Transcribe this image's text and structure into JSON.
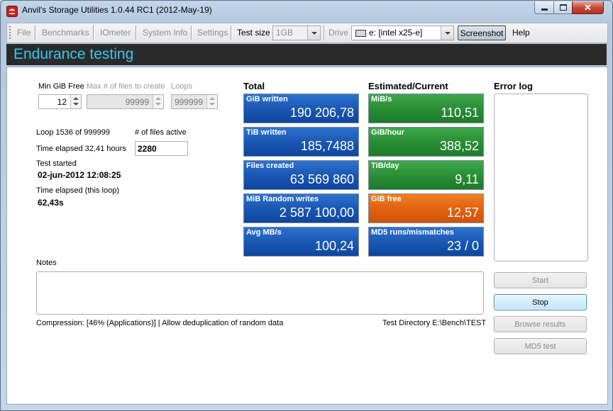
{
  "window": {
    "title": "Anvil's Storage Utilities 1.0.44 RC1 (2012-May-19)"
  },
  "menu": {
    "file": "File",
    "benchmarks": "Benchmarks",
    "iometer": "IOmeter",
    "system_info": "System Info",
    "settings": "Settings",
    "test_size_label": "Test size",
    "test_size_value": "1GB",
    "drive_label": "Drive",
    "drive_value": "e: [intel x25-e]",
    "screenshot": "Screenshot",
    "help": "Help"
  },
  "header": {
    "title": "Endurance testing"
  },
  "params": {
    "min_free_label": "Min GiB Free",
    "min_free_value": "12",
    "max_files_label": "Max # of files to create",
    "max_files_value": "99999",
    "loops_label": "Loops",
    "loops_value": "999999"
  },
  "status": {
    "loop": "Loop 1536 of 999999",
    "elapsed": "Time elapsed 32,41 hours",
    "files_active_label": "# of files active",
    "files_active_value": "2280",
    "test_started_label": "Test started",
    "test_started_value": "02-jun-2012 12:08:25",
    "elapsed_loop_label": "Time elapsed (this loop)",
    "elapsed_loop_value": "62,43s"
  },
  "total": {
    "heading": "Total",
    "tiles": [
      {
        "label": "GiB written",
        "value": "190 206,78"
      },
      {
        "label": "TiB written",
        "value": "185,7488"
      },
      {
        "label": "Files created",
        "value": "63 569 860"
      },
      {
        "label": "MiB Random writes",
        "value": "2 587 100,00"
      },
      {
        "label": "Avg MB/s",
        "value": "100,24"
      }
    ]
  },
  "estimated": {
    "heading": "Estimated/Current",
    "tiles": [
      {
        "label": "MiB/s",
        "value": "110,51"
      },
      {
        "label": "GiB/hour",
        "value": "388,52"
      },
      {
        "label": "TiB/day",
        "value": "9,11"
      },
      {
        "label": "GiB free",
        "value": "12,57"
      },
      {
        "label": "MD5 runs/mismatches",
        "value": "23 / 0"
      }
    ]
  },
  "error_log": {
    "heading": "Error log"
  },
  "notes": {
    "label": "Notes",
    "value": ""
  },
  "footer": {
    "compression": "Compression: [46% (Applications)] | Allow deduplication of random data",
    "test_directory": "Test Directory E:\\Bench\\TEST"
  },
  "buttons": {
    "start": "Start",
    "stop": "Stop",
    "browse": "Browse results",
    "md5": "MD5 test"
  },
  "colors": {
    "header_bg": "#2a2a2a",
    "header_text": "#34c6f0",
    "tile_blue": "#1b58b3",
    "tile_green": "#2b8f37",
    "tile_orange": "#e26210"
  }
}
